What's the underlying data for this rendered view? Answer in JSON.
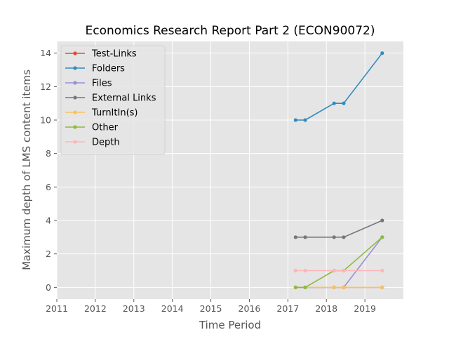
{
  "chart_data": {
    "type": "line",
    "title": "Economics Research Report Part 2 (ECON90072)",
    "xlabel": "Time Period",
    "ylabel": "Maximum depth of LMS content items",
    "xlim": [
      2011.0,
      2020.0
    ],
    "ylim": [
      -0.7,
      14.7
    ],
    "x_ticks": [
      {
        "value": 2011,
        "label": "2011"
      },
      {
        "value": 2012,
        "label": "2012"
      },
      {
        "value": 2013,
        "label": "2013"
      },
      {
        "value": 2014,
        "label": "2014"
      },
      {
        "value": 2015,
        "label": "2015"
      },
      {
        "value": 2016,
        "label": "2016"
      },
      {
        "value": 2017,
        "label": "2017"
      },
      {
        "value": 2018,
        "label": "2018"
      },
      {
        "value": 2019,
        "label": "2019"
      }
    ],
    "y_ticks": [
      {
        "value": 0,
        "label": "0"
      },
      {
        "value": 2,
        "label": "2"
      },
      {
        "value": 4,
        "label": "4"
      },
      {
        "value": 6,
        "label": "6"
      },
      {
        "value": 8,
        "label": "8"
      },
      {
        "value": 10,
        "label": "10"
      },
      {
        "value": 12,
        "label": "12"
      },
      {
        "value": 14,
        "label": "14"
      }
    ],
    "grid": true,
    "legend_position": "top-left",
    "x": [
      2017.2,
      2017.45,
      2018.2,
      2018.45,
      2019.45
    ],
    "series": [
      {
        "name": "Test-Links",
        "color": "#E24A33",
        "values": [
          0,
          0,
          0,
          0,
          0
        ]
      },
      {
        "name": "Folders",
        "color": "#348ABD",
        "values": [
          10,
          10,
          11,
          11,
          14
        ]
      },
      {
        "name": "Files",
        "color": "#988ED5",
        "values": [
          0,
          0,
          0,
          0,
          3
        ]
      },
      {
        "name": "External Links",
        "color": "#777777",
        "values": [
          3,
          3,
          3,
          3,
          4
        ]
      },
      {
        "name": "TurnItIn(s)",
        "color": "#FBC15E",
        "values": [
          0,
          0,
          0,
          0,
          0
        ]
      },
      {
        "name": "Other",
        "color": "#8EBA42",
        "values": [
          0,
          0,
          1,
          1,
          3
        ]
      },
      {
        "name": "Depth",
        "color": "#FFB5B8",
        "values": [
          1,
          1,
          1,
          1,
          1
        ]
      }
    ]
  }
}
